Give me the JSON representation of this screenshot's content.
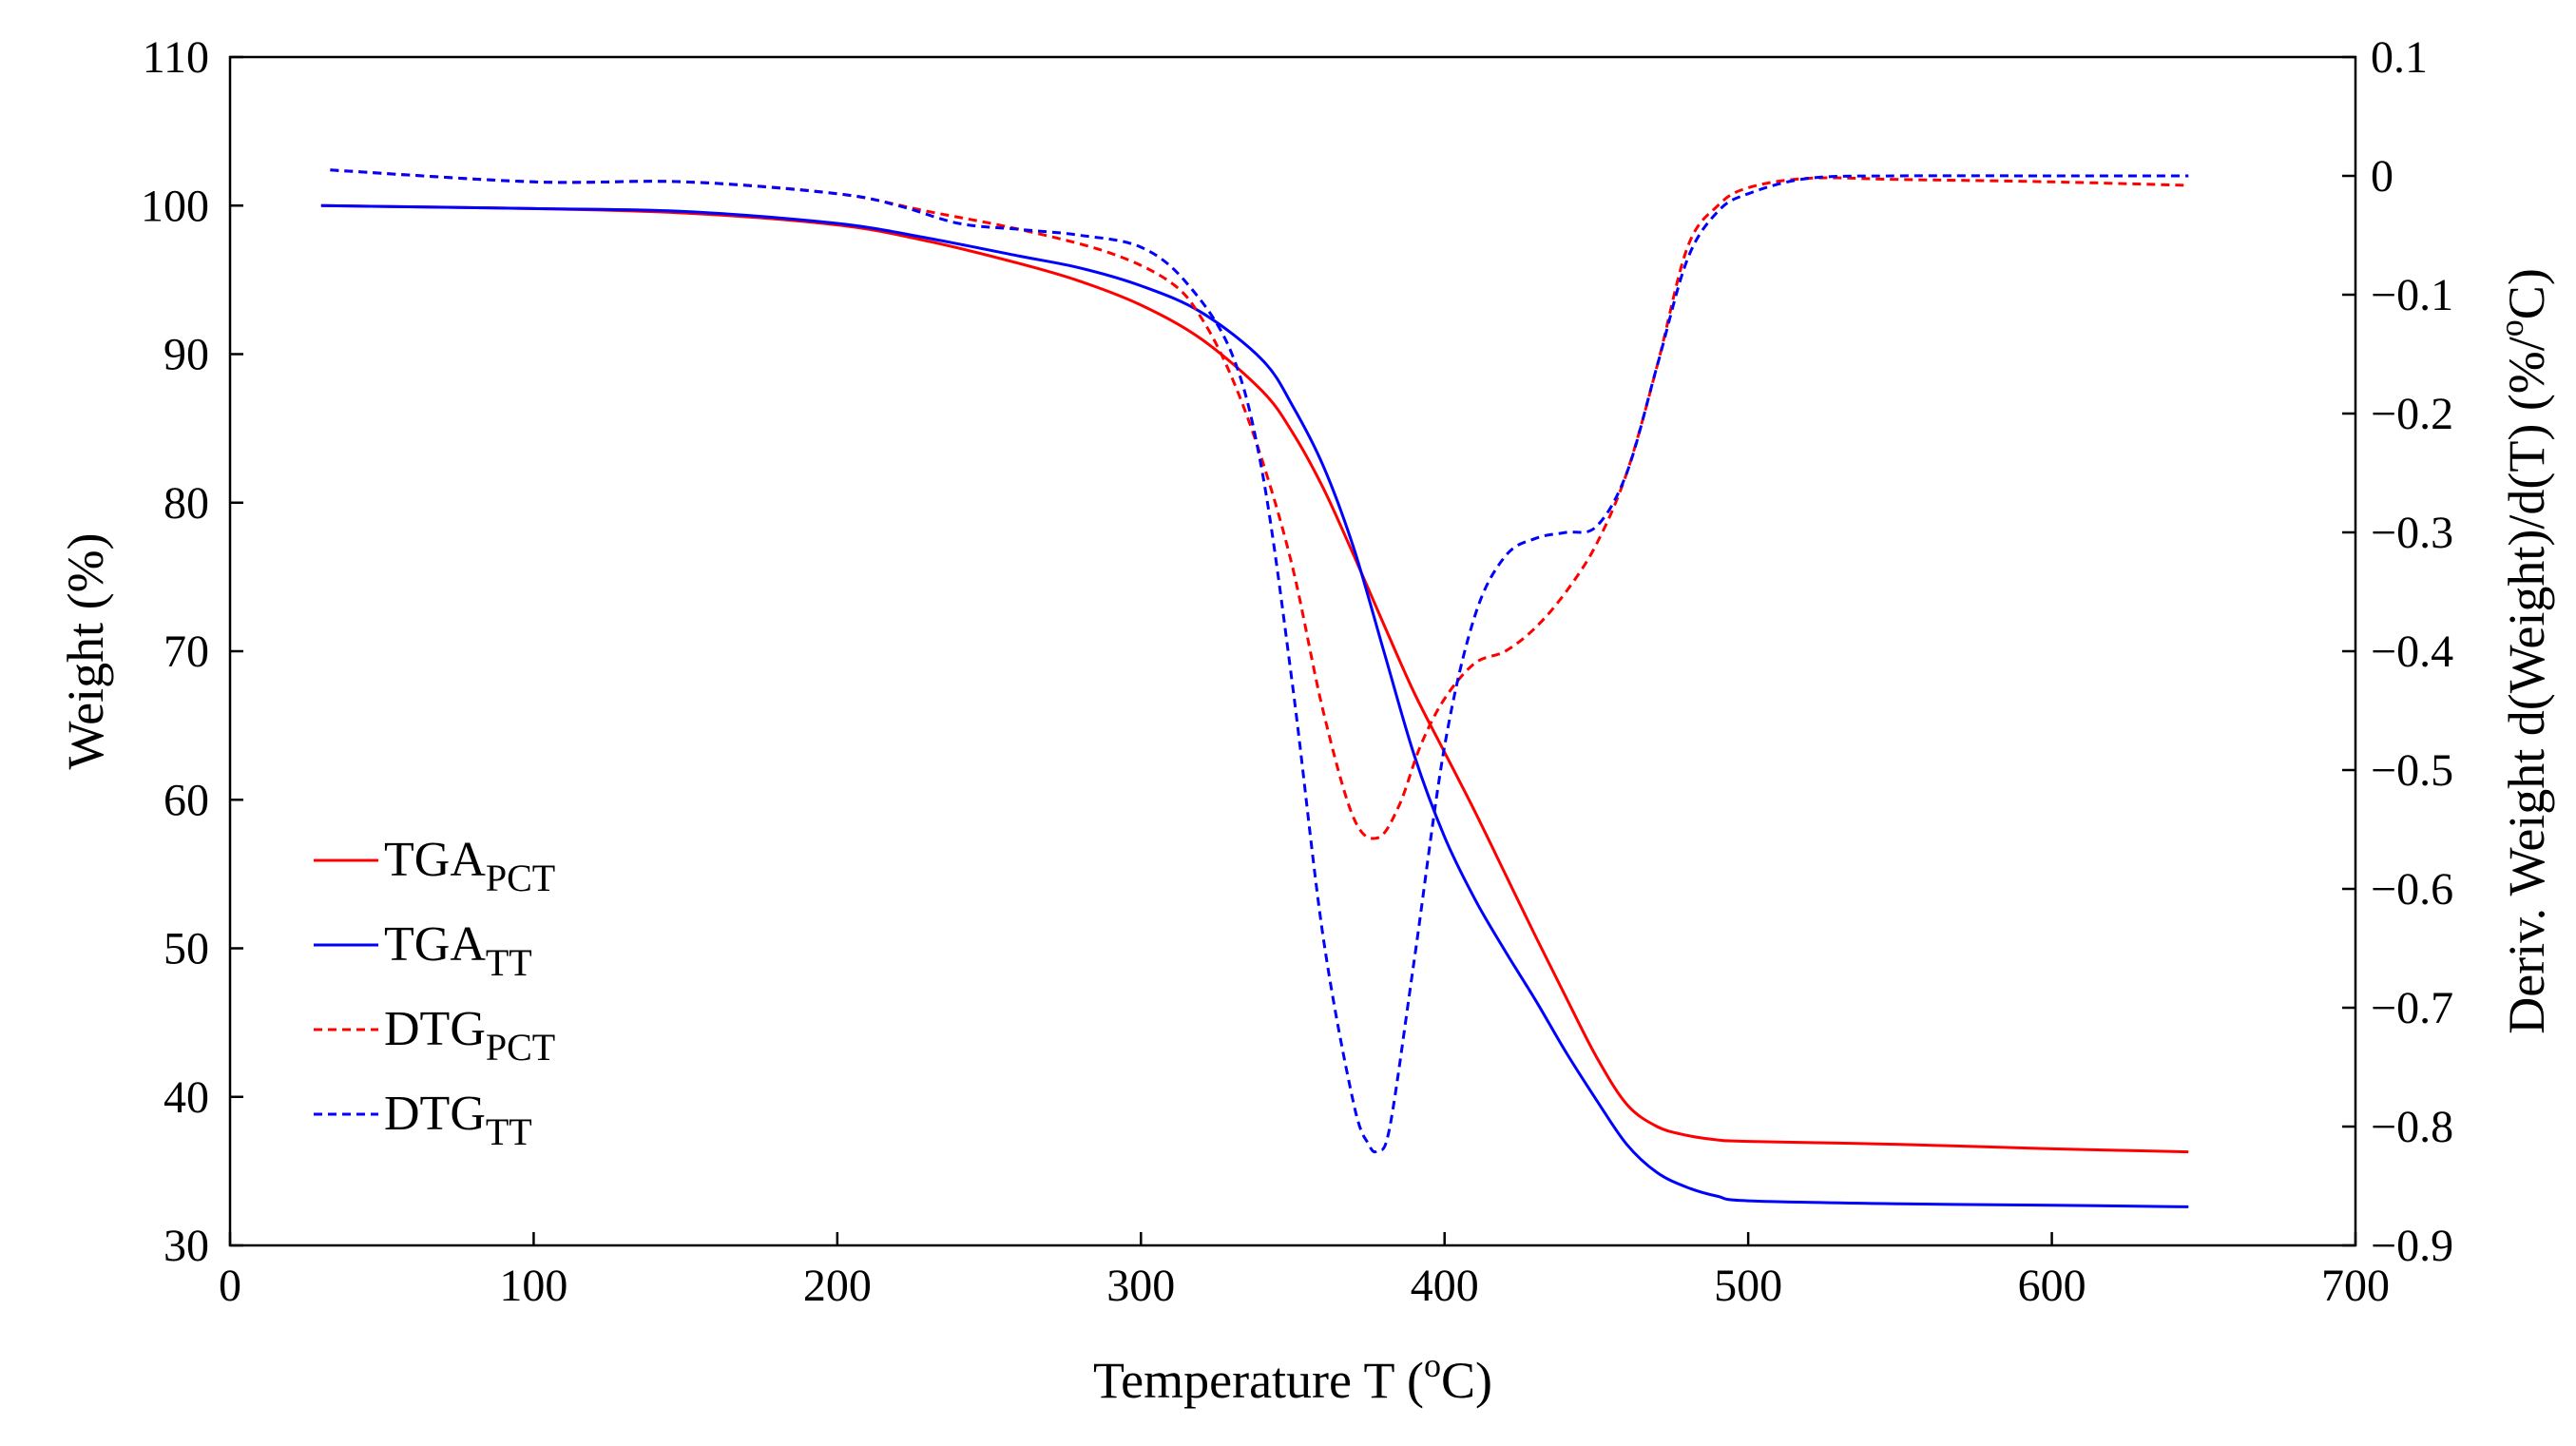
{
  "chart_data": {
    "type": "line",
    "title": "",
    "xlabel": {
      "main": "Temperature T (",
      "sup": "o",
      "tail": "C)"
    },
    "ylabel_left": "Weight (%)",
    "ylabel_right": {
      "main": "Deriv. Weight d(Weight)/d(T) (%/",
      "sup": "o",
      "tail": "C)"
    },
    "xlim": [
      0,
      700
    ],
    "ylim_left": [
      30,
      110
    ],
    "ylim_right": [
      -0.9,
      0.1
    ],
    "x_ticks": [
      0,
      100,
      200,
      300,
      400,
      500,
      600,
      700
    ],
    "x_tick_labels": [
      "0",
      "100",
      "200",
      "300",
      "400",
      "500",
      "600",
      "700"
    ],
    "y_left_ticks": [
      30,
      40,
      50,
      60,
      70,
      80,
      90,
      100,
      110
    ],
    "y_left_tick_labels": [
      "30",
      "40",
      "50",
      "60",
      "70",
      "80",
      "90",
      "100",
      "110"
    ],
    "y_right_ticks": [
      -0.9,
      -0.8,
      -0.7,
      -0.6,
      -0.5,
      -0.4,
      -0.3,
      -0.2,
      -0.1,
      0,
      0.1
    ],
    "y_right_tick_labels": [
      "−0.9",
      "−0.8",
      "−0.7",
      "−0.6",
      "−0.5",
      "−0.4",
      "−0.3",
      "−0.2",
      "−0.1",
      "0",
      "0.1"
    ],
    "grid": false,
    "legend_position": "bottom-left",
    "series": [
      {
        "name": "TGA_PCT",
        "label_main": "TGA",
        "label_sub": "PCT",
        "axis": "left",
        "style": "solid",
        "color": "#ff0000",
        "x": [
          30,
          100,
          150,
          200,
          230,
          260,
          280,
          300,
          320,
          340,
          350,
          360,
          370,
          380,
          390,
          400,
          410,
          420,
          430,
          440,
          450,
          460,
          470,
          480,
          490,
          500,
          550,
          600,
          645
        ],
        "y": [
          100,
          99.8,
          99.5,
          98.7,
          97.6,
          96.1,
          94.9,
          93.3,
          91.0,
          87.5,
          84.7,
          81.0,
          76.5,
          71.8,
          67.2,
          63.2,
          59.2,
          55.0,
          50.8,
          46.7,
          42.7,
          39.5,
          38.0,
          37.4,
          37.1,
          37.0,
          36.8,
          36.5,
          36.3
        ]
      },
      {
        "name": "TGA_TT",
        "label_main": "TGA",
        "label_sub": "TT",
        "axis": "left",
        "style": "solid",
        "color": "#0000ff",
        "x": [
          30,
          100,
          150,
          200,
          230,
          260,
          280,
          300,
          320,
          340,
          350,
          360,
          370,
          380,
          390,
          400,
          410,
          420,
          430,
          440,
          450,
          460,
          470,
          480,
          490,
          500,
          550,
          600,
          645
        ],
        "y": [
          100,
          99.8,
          99.6,
          98.8,
          97.8,
          96.6,
          95.8,
          94.6,
          92.8,
          89.6,
          86.5,
          82.5,
          77.0,
          70.0,
          63.0,
          57.5,
          53.3,
          49.8,
          46.5,
          43.0,
          39.8,
          36.8,
          34.9,
          33.9,
          33.3,
          33.0,
          32.8,
          32.7,
          32.6
        ]
      },
      {
        "name": "DTG_PCT",
        "label_main": "DTG",
        "label_sub": "PCT",
        "axis": "right",
        "style": "dashed",
        "color": "#ff0000",
        "x": [
          33,
          100,
          150,
          200,
          230,
          260,
          290,
          310,
          320,
          330,
          340,
          350,
          360,
          370,
          378,
          385,
          392,
          400,
          410,
          420,
          430,
          440,
          450,
          460,
          470,
          480,
          490,
          500,
          520,
          550,
          600,
          645
        ],
        "y": [
          0.005,
          -0.005,
          -0.005,
          -0.015,
          -0.03,
          -0.045,
          -0.065,
          -0.09,
          -0.12,
          -0.17,
          -0.24,
          -0.33,
          -0.45,
          -0.54,
          -0.557,
          -0.53,
          -0.48,
          -0.44,
          -0.41,
          -0.4,
          -0.38,
          -0.35,
          -0.31,
          -0.25,
          -0.16,
          -0.06,
          -0.025,
          -0.01,
          -0.002,
          -0.003,
          -0.005,
          -0.008
        ]
      },
      {
        "name": "DTG_TT",
        "label_main": "DTG",
        "label_sub": "TT",
        "axis": "right",
        "style": "dashed",
        "color": "#0000ff",
        "x": [
          33,
          100,
          150,
          200,
          220,
          240,
          260,
          280,
          300,
          315,
          330,
          340,
          350,
          360,
          370,
          375,
          378,
          382,
          390,
          400,
          410,
          420,
          430,
          440,
          450,
          460,
          470,
          480,
          490,
          500,
          520,
          550,
          600,
          645
        ],
        "y": [
          0.005,
          -0.005,
          -0.005,
          -0.015,
          -0.025,
          -0.04,
          -0.045,
          -0.05,
          -0.06,
          -0.09,
          -0.15,
          -0.25,
          -0.43,
          -0.64,
          -0.78,
          -0.815,
          -0.82,
          -0.8,
          -0.66,
          -0.48,
          -0.37,
          -0.32,
          -0.305,
          -0.3,
          -0.295,
          -0.25,
          -0.16,
          -0.07,
          -0.03,
          -0.015,
          -0.002,
          0.0,
          0.0,
          0.0
        ]
      }
    ]
  }
}
